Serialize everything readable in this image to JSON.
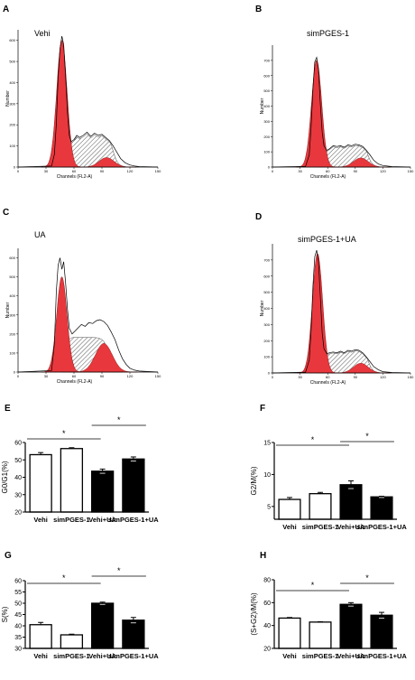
{
  "panels": {
    "A": "A",
    "B": "B",
    "C": "C",
    "D": "D",
    "E": "E",
    "F": "F",
    "G": "G",
    "H": "H"
  },
  "star": "*",
  "colors": {
    "g1": "#e8383d",
    "g2": "#e8383d",
    "s_hatch": "#555555",
    "vehi_bar": "#ffffff",
    "ua_bar": "#000000"
  },
  "chart_data": [
    {
      "type": "histogram",
      "panel": "A",
      "title": "Vehi",
      "xlabel": "Channels (FL2-A)",
      "ylabel": "Number",
      "xticks": [
        "0",
        "30",
        "60",
        "90",
        "120",
        "150"
      ],
      "yticks": [
        "0",
        "100",
        "200",
        "300",
        "400",
        "500",
        "600"
      ],
      "xlim": [
        0,
        150
      ],
      "ylim": [
        0,
        650
      ],
      "g1": {
        "center": 47,
        "height": 600,
        "width": 5.5
      },
      "g2": {
        "center": 95,
        "height": 45,
        "width": 8
      },
      "outline": [
        [
          0,
          0
        ],
        [
          36,
          5
        ],
        [
          39,
          60
        ],
        [
          41,
          200
        ],
        [
          43,
          420
        ],
        [
          45,
          560
        ],
        [
          47,
          620
        ],
        [
          49,
          580
        ],
        [
          51,
          430
        ],
        [
          53,
          260
        ],
        [
          55,
          150
        ],
        [
          57,
          120
        ],
        [
          60,
          130
        ],
        [
          63,
          150
        ],
        [
          66,
          140
        ],
        [
          70,
          150
        ],
        [
          74,
          165
        ],
        [
          78,
          145
        ],
        [
          82,
          160
        ],
        [
          86,
          150
        ],
        [
          90,
          155
        ],
        [
          94,
          140
        ],
        [
          98,
          125
        ],
        [
          102,
          100
        ],
        [
          106,
          70
        ],
        [
          110,
          40
        ],
        [
          115,
          20
        ],
        [
          120,
          10
        ],
        [
          125,
          5
        ],
        [
          130,
          2
        ],
        [
          150,
          0
        ]
      ]
    },
    {
      "type": "histogram",
      "panel": "B",
      "title": "simPGES-1",
      "xlabel": "Channels (FL2-A)",
      "ylabel": "Number",
      "xticks": [
        "0",
        "30",
        "60",
        "90",
        "120",
        "150"
      ],
      "yticks": [
        "0",
        "100",
        "200",
        "300",
        "400",
        "500",
        "600",
        "700"
      ],
      "xlim": [
        0,
        150
      ],
      "ylim": [
        0,
        800
      ],
      "g1": {
        "center": 48,
        "height": 700,
        "width": 5.5
      },
      "g2": {
        "center": 96,
        "height": 60,
        "width": 8
      },
      "outline": [
        [
          0,
          0
        ],
        [
          36,
          5
        ],
        [
          40,
          80
        ],
        [
          42,
          260
        ],
        [
          44,
          520
        ],
        [
          46,
          690
        ],
        [
          48,
          720
        ],
        [
          50,
          640
        ],
        [
          52,
          420
        ],
        [
          54,
          230
        ],
        [
          56,
          140
        ],
        [
          59,
          110
        ],
        [
          62,
          120
        ],
        [
          66,
          140
        ],
        [
          70,
          135
        ],
        [
          74,
          140
        ],
        [
          78,
          130
        ],
        [
          82,
          145
        ],
        [
          86,
          140
        ],
        [
          90,
          150
        ],
        [
          94,
          145
        ],
        [
          98,
          135
        ],
        [
          102,
          110
        ],
        [
          106,
          80
        ],
        [
          110,
          45
        ],
        [
          115,
          20
        ],
        [
          120,
          10
        ],
        [
          130,
          3
        ],
        [
          150,
          0
        ]
      ]
    },
    {
      "type": "histogram",
      "panel": "C",
      "title": "UA",
      "xlabel": "Channels (FL2-A)",
      "ylabel": "Number",
      "xticks": [
        "0",
        "30",
        "60",
        "90",
        "120",
        "150"
      ],
      "yticks": [
        "0",
        "100",
        "200",
        "300",
        "400",
        "500",
        "600"
      ],
      "xlim": [
        0,
        150
      ],
      "ylim": [
        0,
        650
      ],
      "g1": {
        "center": 47,
        "height": 500,
        "width": 5.5
      },
      "g2": {
        "center": 92,
        "height": 150,
        "width": 9
      },
      "outline": [
        [
          0,
          0
        ],
        [
          36,
          8
        ],
        [
          39,
          150
        ],
        [
          41,
          420
        ],
        [
          43,
          560
        ],
        [
          45,
          600
        ],
        [
          47,
          540
        ],
        [
          49,
          580
        ],
        [
          51,
          470
        ],
        [
          53,
          330
        ],
        [
          55,
          230
        ],
        [
          58,
          200
        ],
        [
          61,
          215
        ],
        [
          64,
          230
        ],
        [
          68,
          250
        ],
        [
          72,
          240
        ],
        [
          76,
          260
        ],
        [
          80,
          255
        ],
        [
          84,
          270
        ],
        [
          88,
          275
        ],
        [
          92,
          265
        ],
        [
          96,
          245
        ],
        [
          100,
          210
        ],
        [
          104,
          170
        ],
        [
          108,
          115
        ],
        [
          112,
          70
        ],
        [
          116,
          40
        ],
        [
          120,
          20
        ],
        [
          125,
          10
        ],
        [
          130,
          5
        ],
        [
          150,
          0
        ]
      ]
    },
    {
      "type": "histogram",
      "panel": "D",
      "title": "simPGES-1+UA",
      "xlabel": "Channels (FL2-A)",
      "ylabel": "Number",
      "xticks": [
        "0",
        "30",
        "60",
        "90",
        "120",
        "150"
      ],
      "yticks": [
        "0",
        "100",
        "200",
        "300",
        "400",
        "500",
        "600",
        "700"
      ],
      "xlim": [
        0,
        150
      ],
      "ylim": [
        0,
        800
      ],
      "g1": {
        "center": 49,
        "height": 740,
        "width": 5.5
      },
      "g2": {
        "center": 96,
        "height": 60,
        "width": 8
      },
      "outline": [
        [
          0,
          0
        ],
        [
          36,
          5
        ],
        [
          40,
          80
        ],
        [
          42,
          260
        ],
        [
          44,
          540
        ],
        [
          46,
          720
        ],
        [
          48,
          760
        ],
        [
          50,
          690
        ],
        [
          52,
          480
        ],
        [
          54,
          250
        ],
        [
          56,
          150
        ],
        [
          59,
          120
        ],
        [
          62,
          125
        ],
        [
          66,
          130
        ],
        [
          70,
          125
        ],
        [
          74,
          135
        ],
        [
          78,
          125
        ],
        [
          82,
          140
        ],
        [
          86,
          135
        ],
        [
          90,
          145
        ],
        [
          94,
          140
        ],
        [
          98,
          125
        ],
        [
          102,
          100
        ],
        [
          106,
          70
        ],
        [
          110,
          40
        ],
        [
          115,
          20
        ],
        [
          120,
          8
        ],
        [
          130,
          3
        ],
        [
          150,
          0
        ]
      ]
    },
    {
      "type": "bar",
      "panel": "E",
      "ylabel": "G0/G1(%)",
      "categories": [
        "Vehi",
        "simPGES-1",
        "Vehi+UA",
        "simPGES-1+UA"
      ],
      "values": [
        53,
        56.5,
        43.5,
        50.5
      ],
      "errors": [
        1.2,
        0.5,
        1.2,
        1.2
      ],
      "yticks": [
        "20",
        "30",
        "40",
        "50",
        "60"
      ],
      "ylim": [
        20,
        60
      ],
      "sig": [
        {
          "from": 0,
          "to": 2,
          "label": "*"
        },
        {
          "from": 2,
          "to": 3,
          "label": "*"
        }
      ]
    },
    {
      "type": "bar",
      "panel": "F",
      "ylabel": "G2/M(%)",
      "categories": [
        "Vehi",
        "simPGES-1",
        "Vehi+UA",
        "simPGES-1+UA"
      ],
      "values": [
        6.1,
        7.0,
        8.4,
        6.5
      ],
      "errors": [
        0.3,
        0.2,
        0.6,
        0.1
      ],
      "yticks": [
        "5",
        "10",
        "15"
      ],
      "ylim": [
        3,
        15
      ],
      "sig": [
        {
          "from": 0,
          "to": 2,
          "label": "*"
        },
        {
          "from": 2,
          "to": 3,
          "label": "*"
        }
      ]
    },
    {
      "type": "bar",
      "panel": "G",
      "ylabel": "S(%)",
      "categories": [
        "Vehi",
        "simPGES-1",
        "Vehi+UA",
        "simPGES-1+UA"
      ],
      "values": [
        40.5,
        36,
        50,
        42.5
      ],
      "errors": [
        1.0,
        0.3,
        0.5,
        1.2
      ],
      "yticks": [
        "30",
        "35",
        "40",
        "45",
        "50",
        "55",
        "60"
      ],
      "ylim": [
        30,
        60
      ],
      "sig": [
        {
          "from": 0,
          "to": 2,
          "label": "*"
        },
        {
          "from": 2,
          "to": 3,
          "label": "*"
        }
      ]
    },
    {
      "type": "bar",
      "panel": "H",
      "ylabel": "(S+G2)/M(%)",
      "categories": [
        "Vehi",
        "simPGES-1",
        "Vehi+UA",
        "simPGES-1+UA"
      ],
      "values": [
        46.5,
        43,
        58.5,
        49
      ],
      "errors": [
        0.5,
        0.3,
        1.5,
        2.5
      ],
      "yticks": [
        "20",
        "40",
        "60",
        "80"
      ],
      "ylim": [
        20,
        80
      ],
      "sig": [
        {
          "from": 0,
          "to": 2,
          "label": "*"
        },
        {
          "from": 2,
          "to": 3,
          "label": "*"
        }
      ]
    }
  ]
}
